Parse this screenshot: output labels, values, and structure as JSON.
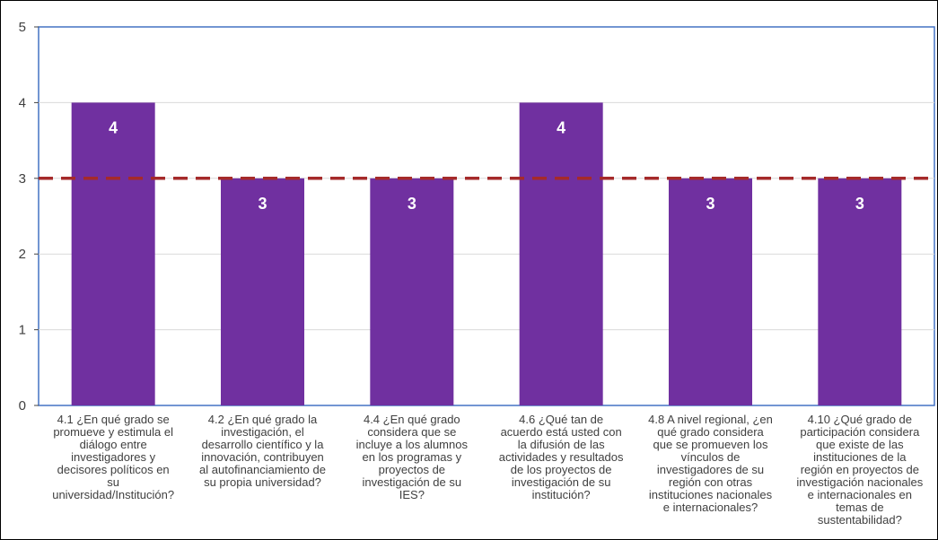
{
  "chart_data": {
    "type": "bar",
    "categories": [
      "4.1 ¿En qué grado  se\npromueve y estimula el\ndiálogo entre\ninvestigadores y\ndecisores políticos en\nsu\nuniversidad/Institución?",
      "4.2 ¿En qué grado  la\ninvestigación, el\ndesarrollo científico y la\ninnovación, contribuyen\nal autofinanciamiento de\nsu propia universidad?",
      "4.4 ¿En qué grado\nconsidera que se\nincluye a los alumnos\nen los programas  y\nproyectos de\ninvestigación de su\nIES?",
      "4.6 ¿Qué  tan de\nacuerdo está usted con\nla difusión de las\nactividades y resultados\nde los proyectos de\ninvestigación de su\ninstitución?",
      "4.8 A nivel regional,  ¿en\nqué grado considera\nque se promueven los\nvínculos de\ninvestigadores de su\nregión con otras\ninstituciones nacionales\ne internacionales?",
      "4.10 ¿Qué grado de\nparticipación considera\nque existe de las\ninstituciones de la\nregión en proyectos de\ninvestigación nacionales\ne internacionales en\ntemas de\nsustentabilidad?"
    ],
    "values": [
      4,
      3,
      3,
      4,
      3,
      3
    ],
    "data_labels": [
      "4",
      "3",
      "3",
      "4",
      "3",
      "3"
    ],
    "ylim": [
      0,
      5
    ],
    "yticks": [
      "0",
      "1",
      "2",
      "3",
      "4",
      "5"
    ],
    "reference_line": 3,
    "grid": true,
    "legend": "none",
    "colors": {
      "bar": "#7030a0",
      "reference_line": "#a52a2a",
      "plot_border": "#4472c4",
      "grid": "#d9d9d9",
      "label_text": "#ffffff"
    }
  }
}
